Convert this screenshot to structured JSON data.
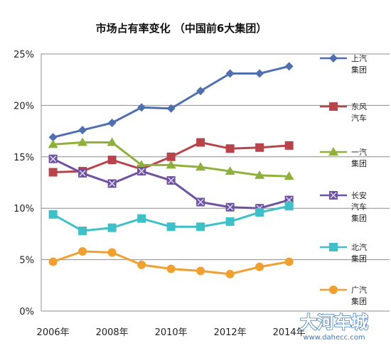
{
  "chart_data": {
    "type": "line",
    "title": "市场占有率变化 （中国前6大集团）",
    "x": [
      2006,
      2007,
      2008,
      2009,
      2010,
      2011,
      2012,
      2013,
      2014
    ],
    "x_tick_labels": [
      "2006年",
      "2008年",
      "2010年",
      "2012年",
      "2014年"
    ],
    "x_tick_values": [
      2006,
      2008,
      2010,
      2012,
      2014
    ],
    "xlim": [
      2005.6,
      2014.9
    ],
    "ylim": [
      0,
      25
    ],
    "y_tick_labels": [
      "0%",
      "5%",
      "10%",
      "15%",
      "20%",
      "25%"
    ],
    "y_tick_values": [
      0,
      5,
      10,
      15,
      20,
      25
    ],
    "grid": "horizontal",
    "legend_position": "right",
    "series": [
      {
        "name": "上汽集团",
        "label_lines": [
          "上汽",
          "集团"
        ],
        "color": "#4f6fb0",
        "marker": "diamond",
        "values": [
          16.9,
          17.6,
          18.3,
          19.8,
          19.7,
          21.4,
          23.1,
          23.1,
          23.8
        ]
      },
      {
        "name": "东风汽车",
        "label_lines": [
          "东风",
          "汽车"
        ],
        "color": "#b8434a",
        "marker": "square",
        "values": [
          13.5,
          13.6,
          14.7,
          13.8,
          15.0,
          16.4,
          15.8,
          15.9,
          16.1
        ]
      },
      {
        "name": "一汽集团",
        "label_lines": [
          "一汽",
          "集团"
        ],
        "color": "#8fb03a",
        "marker": "triangle",
        "values": [
          16.2,
          16.4,
          16.4,
          14.2,
          14.2,
          14.0,
          13.6,
          13.2,
          13.1
        ]
      },
      {
        "name": "长安汽车集团",
        "label_lines": [
          "长安",
          "汽车",
          "集团"
        ],
        "color": "#7051a0",
        "marker": "cross",
        "values": [
          14.8,
          13.4,
          12.4,
          13.6,
          12.7,
          10.6,
          10.1,
          10.0,
          10.8
        ]
      },
      {
        "name": "北汽集团",
        "label_lines": [
          "北汽",
          "集团"
        ],
        "color": "#3fc0c8",
        "marker": "square",
        "values": [
          9.4,
          7.8,
          8.1,
          9.0,
          8.2,
          8.2,
          8.7,
          9.6,
          10.2
        ]
      },
      {
        "name": "广汽集团",
        "label_lines": [
          "广汽",
          "集团"
        ],
        "color": "#f0a030",
        "marker": "circle",
        "values": [
          4.8,
          5.8,
          5.7,
          4.5,
          4.1,
          3.9,
          3.6,
          4.3,
          4.8
        ]
      }
    ]
  },
  "watermark": {
    "brand": "大河车城",
    "url": "www.dahecc.com"
  }
}
